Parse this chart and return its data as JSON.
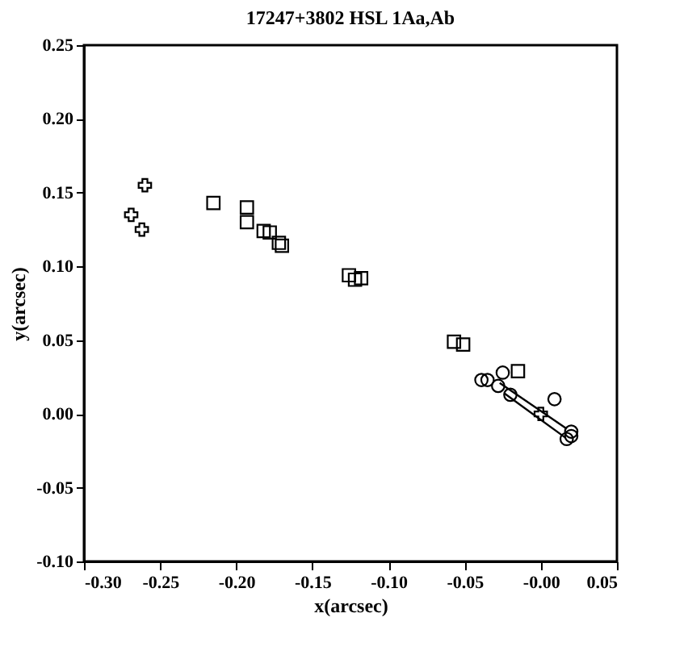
{
  "chart_data": {
    "type": "scatter",
    "title": "17247+3802    HSL    1Aa,Ab",
    "xlabel": "x(arcsec)",
    "ylabel": "y(arcsec)",
    "xlim": [
      -0.3,
      0.05
    ],
    "ylim": [
      -0.1,
      0.25
    ],
    "xticks": [
      {
        "value": -0.3,
        "label": "-0.30"
      },
      {
        "value": -0.25,
        "label": "-0.25"
      },
      {
        "value": -0.2,
        "label": "-0.20"
      },
      {
        "value": -0.15,
        "label": "-0.15"
      },
      {
        "value": -0.1,
        "label": "-0.10"
      },
      {
        "value": -0.05,
        "label": "-0.05"
      },
      {
        "value": 0,
        "label": "-0.00"
      },
      {
        "value": 0.05,
        "label": "0.05"
      }
    ],
    "yticks": [
      {
        "value": -0.1,
        "label": "-0.10"
      },
      {
        "value": -0.05,
        "label": "-0.05"
      },
      {
        "value": 0,
        "label": "0.00"
      },
      {
        "value": 0.05,
        "label": "0.05"
      },
      {
        "value": 0.1,
        "label": "0.10"
      },
      {
        "value": 0.15,
        "label": "0.15"
      },
      {
        "value": 0.2,
        "label": "0.20"
      },
      {
        "value": 0.25,
        "label": "0.25"
      }
    ],
    "grid": false,
    "series": [
      {
        "type": "line",
        "color": "#000000",
        "x": [
          -0.027,
          0.017
        ],
        "values": [
          0.021,
          -0.01
        ]
      },
      {
        "type": "line",
        "color": "#000000",
        "x": [
          -0.024,
          0.016
        ],
        "values": [
          0.014,
          -0.016
        ]
      },
      {
        "marker": "cross",
        "color": "#000000",
        "x": [
          -0.26,
          -0.269,
          -0.262
        ],
        "values": [
          0.155,
          0.135,
          0.125
        ]
      },
      {
        "marker": "square",
        "color": "#000000",
        "x": [
          -0.215,
          -0.193,
          -0.193,
          -0.182,
          -0.178,
          -0.172,
          -0.17,
          -0.126,
          -0.122,
          -0.118,
          -0.057,
          -0.051,
          -0.015
        ],
        "values": [
          0.143,
          0.14,
          0.13,
          0.124,
          0.123,
          0.116,
          0.114,
          0.094,
          0.091,
          0.092,
          0.049,
          0.047,
          0.029
        ]
      },
      {
        "marker": "circle",
        "color": "#000000",
        "x": [
          -0.039,
          -0.035,
          -0.025,
          -0.02,
          0.02,
          0.02
        ],
        "values": [
          0.023,
          0.023,
          0.028,
          0.013,
          -0.012,
          -0.015
        ]
      },
      {
        "marker": "circle",
        "color": "#000000",
        "x": [
          -0.028,
          0.009,
          0.017
        ],
        "values": [
          0.019,
          0.01,
          -0.017
        ]
      },
      {
        "marker": "cross",
        "color": "#000000",
        "x": [
          0
        ],
        "values": [
          0
        ]
      }
    ]
  }
}
